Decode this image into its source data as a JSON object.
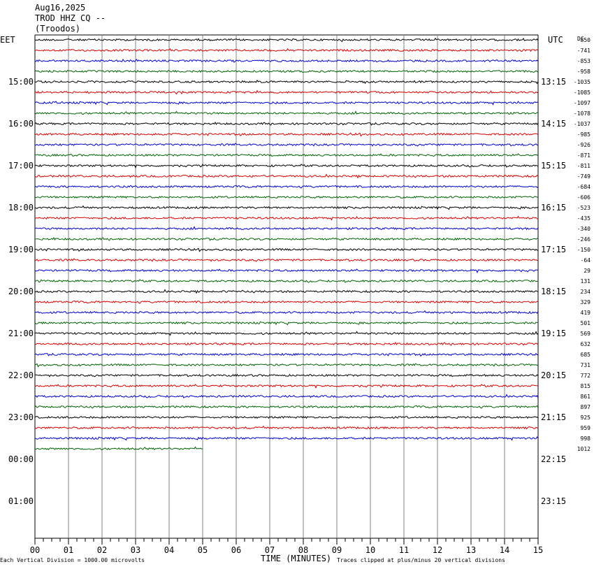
{
  "header": {
    "date": "Aug16,2025",
    "station": "TROD HHZ CQ --",
    "location": "(Troodos)"
  },
  "left_timezone": "EET",
  "right_timezone": "UTC",
  "dc_label": "DC",
  "footer": {
    "scale_note": "Each Vertical Division = 1000.00 microvolts",
    "xlabel": "TIME (MINUTES)",
    "clip_note": "Traces clipped at plus/minus 20 vertical divisions"
  },
  "colors": {
    "trace_cycle": [
      "#000000",
      "#d40000",
      "#0000c8",
      "#006400"
    ],
    "grid": "#808080"
  },
  "chart_data": {
    "type": "line",
    "title": "TROD HHZ CQ -- (Troodos)",
    "xlabel": "TIME (MINUTES)",
    "xlim": [
      0,
      15
    ],
    "x_ticks": [
      "00",
      "01",
      "02",
      "03",
      "04",
      "05",
      "06",
      "07",
      "08",
      "09",
      "10",
      "11",
      "12",
      "13",
      "14",
      "15"
    ],
    "left_hour_labels": [
      "15:00",
      "16:00",
      "17:00",
      "18:00",
      "19:00",
      "20:00",
      "21:00",
      "22:00",
      "23:00",
      "00:00",
      "01:00"
    ],
    "right_hour_labels": [
      "13:15",
      "14:15",
      "15:15",
      "16:15",
      "17:15",
      "18:15",
      "19:15",
      "20:15",
      "21:15",
      "22:15",
      "23:15"
    ],
    "dc_offsets": [
      -850,
      -741,
      -853,
      -958,
      -1035,
      -1085,
      -1097,
      -1078,
      -1037,
      -985,
      -926,
      -871,
      -811,
      -749,
      -684,
      -606,
      -523,
      -435,
      -340,
      -246,
      -150,
      -64,
      29,
      131,
      234,
      329,
      419,
      501,
      569,
      632,
      685,
      731,
      772,
      815,
      861,
      897,
      925,
      959,
      998,
      1012
    ],
    "trace_count": 40,
    "last_trace_minutes": 5,
    "grid": true
  }
}
